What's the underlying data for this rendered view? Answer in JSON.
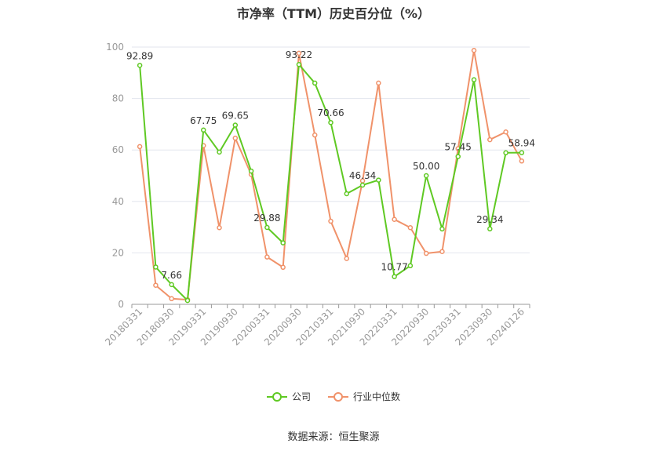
{
  "chart_data": {
    "type": "line",
    "title": "市净率（TTM）历史百分位（%）",
    "source": "数据来源：恒生聚源",
    "ylim": [
      0,
      100
    ],
    "yticks": [
      "0",
      "20",
      "40",
      "60",
      "80",
      "100"
    ],
    "categories": [
      "20180331",
      "20180630",
      "20180930",
      "20181231",
      "20190331",
      "20190630",
      "20190930",
      "20191231",
      "20200331",
      "20200630",
      "20200930",
      "20201231",
      "20210331",
      "20210630",
      "20210930",
      "20211231",
      "20220331",
      "20220630",
      "20220930",
      "20221231",
      "20230331",
      "20230630",
      "20230930",
      "20231231",
      "20240126"
    ],
    "tick_labels": [
      "20180331",
      "",
      "20180930",
      "",
      "20190331",
      "",
      "20190930",
      "",
      "20200331",
      "",
      "20200930",
      "",
      "20210331",
      "",
      "20210930",
      "",
      "20220331",
      "",
      "20220930",
      "",
      "20230331",
      "",
      "20230930",
      "",
      "20240126"
    ],
    "series": [
      {
        "name": "公司",
        "color": "#5fc923",
        "values": [
          92.89,
          14.5,
          7.66,
          1.5,
          67.75,
          59.2,
          69.65,
          51.8,
          29.88,
          23.9,
          93.22,
          86.0,
          70.66,
          43.0,
          46.34,
          48.3,
          10.77,
          15.0,
          50.0,
          29.3,
          57.45,
          87.3,
          29.34,
          58.9,
          58.94
        ],
        "labels": [
          "92.89",
          "",
          "7.66",
          "",
          "67.75",
          "",
          "69.65",
          "",
          "29.88",
          "",
          "93.22",
          "",
          "70.66",
          "",
          "46.34",
          "",
          "10.77",
          "",
          "50.00",
          "",
          "57.45",
          "",
          "29.34",
          "",
          "58.94"
        ]
      },
      {
        "name": "行业中位数",
        "color": "#f0926a",
        "values": [
          61.3,
          7.4,
          2.2,
          1.8,
          61.7,
          29.8,
          64.6,
          50.5,
          18.4,
          14.4,
          97.6,
          65.8,
          32.3,
          17.8,
          48.0,
          86.0,
          33.0,
          29.8,
          19.8,
          20.5,
          60.5,
          98.7,
          64.0,
          67.0,
          55.7
        ]
      }
    ],
    "grid": true,
    "legend_position": "bottom"
  }
}
